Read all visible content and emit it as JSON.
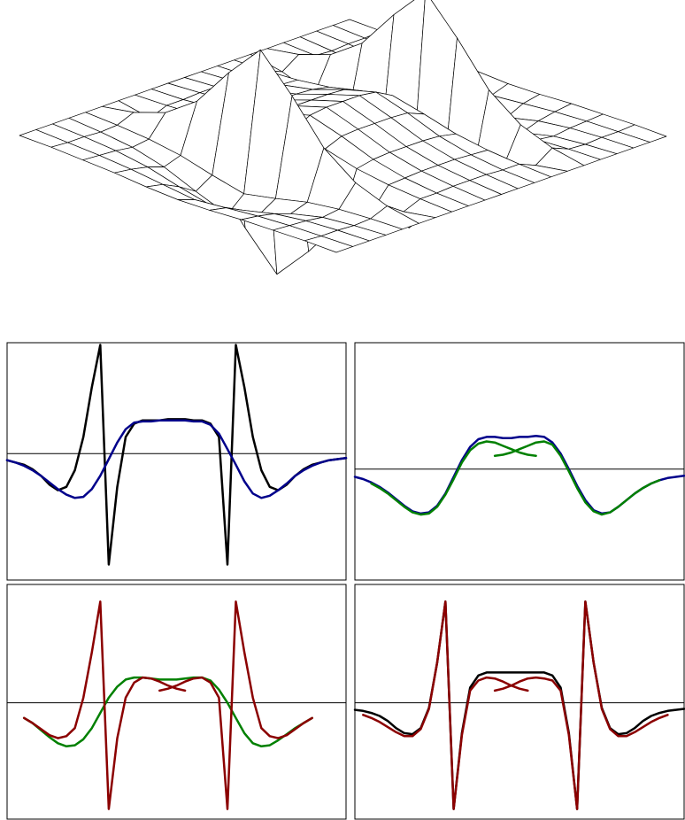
{
  "chart_data": [
    {
      "type": "surface",
      "z": [
        [
          0,
          0,
          0,
          0,
          0,
          0,
          0,
          0,
          0,
          0,
          0,
          0,
          0,
          0,
          0,
          0,
          0,
          0,
          0,
          0,
          0
        ],
        [
          0,
          -0.01,
          -0.01,
          -0.02,
          -0.01,
          0.05,
          -0.05,
          0.01,
          0.01,
          0.02,
          0.02,
          0.02,
          0.01,
          0.01,
          -0.05,
          0.05,
          -0.01,
          -0.02,
          -0.01,
          -0.01,
          0
        ],
        [
          -0.01,
          -0.02,
          -0.03,
          -0.05,
          -0.03,
          0.15,
          -0.15,
          0.03,
          0.04,
          0.05,
          0.05,
          0.05,
          0.04,
          0.03,
          -0.15,
          0.15,
          -0.03,
          -0.05,
          -0.03,
          -0.02,
          -0.01
        ],
        [
          -0.02,
          -0.04,
          -0.07,
          -0.12,
          -0.07,
          0.35,
          -0.35,
          0.07,
          0.1,
          0.11,
          0.11,
          0.11,
          0.1,
          0.07,
          -0.35,
          0.35,
          -0.07,
          -0.12,
          -0.07,
          -0.04,
          -0.02
        ],
        [
          -0.04,
          -0.07,
          -0.14,
          -0.23,
          -0.14,
          0.7,
          -0.7,
          0.14,
          0.2,
          0.21,
          0.21,
          0.21,
          0.2,
          0.14,
          -0.7,
          0.7,
          -0.14,
          -0.23,
          -0.14,
          -0.07,
          -0.04
        ],
        [
          -0.05,
          -0.1,
          -0.2,
          -0.33,
          -0.2,
          1.0,
          -1.0,
          0.2,
          0.28,
          0.3,
          0.3,
          0.3,
          0.28,
          0.2,
          -1.0,
          1.0,
          -0.2,
          -0.33,
          -0.2,
          -0.1,
          -0.05
        ],
        [
          -0.04,
          -0.07,
          -0.14,
          -0.23,
          -0.14,
          0.7,
          -0.7,
          0.14,
          0.2,
          0.21,
          0.21,
          0.21,
          0.2,
          0.14,
          -0.7,
          0.7,
          -0.14,
          -0.23,
          -0.14,
          -0.07,
          -0.04
        ],
        [
          -0.02,
          -0.04,
          -0.07,
          -0.12,
          -0.07,
          0.35,
          -0.35,
          0.07,
          0.1,
          0.11,
          0.11,
          0.11,
          0.1,
          0.07,
          -0.35,
          0.35,
          -0.07,
          -0.12,
          -0.07,
          -0.04,
          -0.02
        ],
        [
          -0.01,
          -0.02,
          -0.03,
          -0.05,
          -0.03,
          0.15,
          -0.15,
          0.03,
          0.04,
          0.05,
          0.05,
          0.05,
          0.04,
          0.03,
          -0.15,
          0.15,
          -0.03,
          -0.05,
          -0.03,
          -0.02,
          -0.01
        ],
        [
          0,
          -0.01,
          -0.01,
          -0.02,
          -0.01,
          0.05,
          -0.05,
          0.01,
          0.01,
          0.02,
          0.02,
          0.02,
          0.01,
          0.01,
          -0.05,
          0.05,
          -0.01,
          -0.02,
          -0.01,
          -0.01,
          0
        ],
        [
          0,
          0,
          0,
          0,
          0,
          0,
          0,
          0,
          0,
          0,
          0,
          0,
          0,
          0,
          0,
          0,
          0,
          0,
          0,
          0,
          0
        ]
      ]
    },
    {
      "type": "line",
      "xlim": [
        0,
        1
      ],
      "ylim": [
        -1.14,
        1.0
      ],
      "x": [
        0,
        0.025,
        0.05,
        0.075,
        0.1,
        0.125,
        0.15,
        0.175,
        0.2,
        0.225,
        0.25,
        0.275,
        0.3,
        0.325,
        0.35,
        0.375,
        0.4,
        0.425,
        0.45,
        0.475,
        0.5,
        0.525,
        0.55,
        0.575,
        0.6,
        0.625,
        0.65,
        0.675,
        0.7,
        0.725,
        0.75,
        0.775,
        0.8,
        0.825,
        0.85,
        0.875,
        0.9,
        0.925,
        0.95,
        0.975,
        1
      ],
      "series": [
        {
          "color": "#000000",
          "values": [
            -0.06,
            -0.08,
            -0.1,
            -0.14,
            -0.2,
            -0.28,
            -0.33,
            -0.3,
            -0.15,
            0.15,
            0.6,
            0.98,
            -1.0,
            -0.3,
            0.15,
            0.27,
            0.3,
            0.3,
            0.3,
            0.31,
            0.31,
            0.31,
            0.3,
            0.3,
            0.27,
            0.15,
            -1.0,
            0.98,
            0.6,
            0.15,
            -0.15,
            -0.3,
            -0.33,
            -0.28,
            -0.2,
            -0.14,
            -0.1,
            -0.08,
            -0.06,
            -0.05,
            -0.04
          ]
        },
        {
          "color": "#00008b",
          "values": [
            -0.06,
            -0.08,
            -0.11,
            -0.15,
            -0.2,
            -0.26,
            -0.32,
            -0.37,
            -0.4,
            -0.39,
            -0.32,
            -0.2,
            -0.05,
            0.1,
            0.22,
            0.28,
            0.29,
            0.29,
            0.3,
            0.3,
            0.3,
            0.3,
            0.29,
            0.29,
            0.26,
            0.18,
            0.04,
            -0.1,
            -0.25,
            -0.36,
            -0.4,
            -0.38,
            -0.33,
            -0.27,
            -0.2,
            -0.15,
            -0.11,
            -0.08,
            -0.06,
            -0.05,
            -0.04
          ]
        }
      ]
    },
    {
      "type": "line",
      "xlim": [
        0,
        1
      ],
      "ylim": [
        -1.0,
        1.14
      ],
      "x": [
        0,
        0.025,
        0.05,
        0.075,
        0.1,
        0.125,
        0.15,
        0.175,
        0.2,
        0.225,
        0.25,
        0.275,
        0.3,
        0.325,
        0.35,
        0.375,
        0.4,
        0.425,
        0.45,
        0.475,
        0.5,
        0.525,
        0.55,
        0.575,
        0.6,
        0.625,
        0.65,
        0.675,
        0.7,
        0.725,
        0.75,
        0.775,
        0.8,
        0.825,
        0.85,
        0.875,
        0.9,
        0.925,
        0.95,
        0.975,
        1
      ],
      "series": [
        {
          "color": "#00008b",
          "values": [
            -0.07,
            -0.09,
            -0.12,
            -0.16,
            -0.21,
            -0.27,
            -0.33,
            -0.38,
            -0.4,
            -0.39,
            -0.33,
            -0.22,
            -0.07,
            0.08,
            0.2,
            0.27,
            0.29,
            0.29,
            0.28,
            0.28,
            0.29,
            0.29,
            0.3,
            0.29,
            0.24,
            0.14,
            0.0,
            -0.15,
            -0.28,
            -0.37,
            -0.4,
            -0.39,
            -0.34,
            -0.28,
            -0.22,
            -0.17,
            -0.13,
            -0.1,
            -0.08,
            -0.07,
            -0.06
          ]
        },
        {
          "color": "#008000",
          "values": [
            null,
            null,
            -0.13,
            -0.17,
            -0.22,
            -0.28,
            -0.34,
            -0.39,
            -0.41,
            -0.4,
            -0.34,
            -0.23,
            -0.09,
            0.06,
            0.17,
            0.23,
            0.25,
            0.24,
            0.21,
            0.18,
            0.15,
            0.13,
            0.12,
            null,
            null,
            null,
            null,
            null,
            null,
            null,
            null,
            null,
            null,
            null,
            null,
            null,
            null,
            null,
            null,
            null,
            null
          ]
        },
        {
          "color": "#008000",
          "values": [
            null,
            null,
            null,
            null,
            null,
            null,
            null,
            null,
            null,
            null,
            null,
            null,
            null,
            null,
            null,
            null,
            null,
            0.12,
            0.13,
            0.15,
            0.18,
            0.21,
            0.24,
            0.25,
            0.22,
            0.12,
            -0.02,
            -0.17,
            -0.3,
            -0.38,
            -0.41,
            -0.39,
            -0.34,
            -0.28,
            -0.22,
            -0.17,
            -0.13,
            -0.1,
            null,
            null,
            null
          ]
        }
      ]
    },
    {
      "type": "line",
      "xlim": [
        0,
        1
      ],
      "ylim": [
        -1.15,
        1.17
      ],
      "x": [
        0,
        0.025,
        0.05,
        0.075,
        0.1,
        0.125,
        0.15,
        0.175,
        0.2,
        0.225,
        0.25,
        0.275,
        0.3,
        0.325,
        0.35,
        0.375,
        0.4,
        0.425,
        0.45,
        0.475,
        0.5,
        0.525,
        0.55,
        0.575,
        0.6,
        0.625,
        0.65,
        0.675,
        0.7,
        0.725,
        0.75,
        0.775,
        0.8,
        0.825,
        0.85,
        0.875,
        0.9,
        0.925,
        0.95,
        0.975,
        1
      ],
      "series": [
        {
          "color": "#008000",
          "values": [
            null,
            null,
            -0.15,
            -0.2,
            -0.27,
            -0.34,
            -0.4,
            -0.43,
            -0.42,
            -0.36,
            -0.25,
            -0.1,
            0.05,
            0.16,
            0.23,
            0.25,
            0.25,
            0.24,
            0.23,
            0.23,
            0.23,
            0.24,
            0.25,
            0.25,
            0.22,
            0.13,
            0.0,
            -0.15,
            -0.3,
            -0.4,
            -0.43,
            -0.42,
            -0.37,
            -0.31,
            -0.25,
            -0.2,
            -0.15,
            null,
            null,
            null,
            null
          ]
        },
        {
          "color": "#8b0000",
          "values": [
            null,
            null,
            -0.15,
            -0.2,
            -0.26,
            -0.32,
            -0.35,
            -0.33,
            -0.25,
            0.05,
            0.5,
            1.0,
            -1.05,
            -0.35,
            0.05,
            0.2,
            0.25,
            0.24,
            0.21,
            0.17,
            0.14,
            0.12,
            null,
            null,
            null,
            null,
            null,
            null,
            null,
            null,
            null,
            null,
            null,
            null,
            null,
            null,
            null,
            null,
            null,
            null,
            null
          ]
        },
        {
          "color": "#8b0000",
          "values": [
            null,
            null,
            null,
            null,
            null,
            null,
            null,
            null,
            null,
            null,
            null,
            null,
            null,
            null,
            null,
            null,
            null,
            null,
            0.12,
            0.14,
            0.17,
            0.21,
            0.24,
            0.25,
            0.2,
            0.05,
            -1.05,
            1.0,
            0.5,
            0.05,
            -0.25,
            -0.33,
            -0.35,
            -0.32,
            -0.26,
            -0.2,
            -0.15,
            null,
            null,
            null,
            null
          ]
        }
      ]
    },
    {
      "type": "line",
      "xlim": [
        0,
        1
      ],
      "ylim": [
        -1.15,
        1.17
      ],
      "x": [
        0,
        0.025,
        0.05,
        0.075,
        0.1,
        0.125,
        0.15,
        0.175,
        0.2,
        0.225,
        0.25,
        0.275,
        0.3,
        0.325,
        0.35,
        0.375,
        0.4,
        0.425,
        0.45,
        0.475,
        0.5,
        0.525,
        0.55,
        0.575,
        0.6,
        0.625,
        0.65,
        0.675,
        0.7,
        0.725,
        0.75,
        0.775,
        0.8,
        0.825,
        0.85,
        0.875,
        0.9,
        0.925,
        0.95,
        0.975,
        1
      ],
      "series": [
        {
          "color": "#000000",
          "values": [
            -0.07,
            -0.08,
            -0.1,
            -0.13,
            -0.18,
            -0.25,
            -0.3,
            -0.31,
            -0.25,
            -0.05,
            0.4,
            1.0,
            -1.05,
            -0.3,
            0.15,
            0.27,
            0.3,
            0.3,
            0.3,
            0.3,
            0.3,
            0.3,
            0.3,
            0.3,
            0.27,
            0.15,
            -0.3,
            -1.05,
            1.0,
            0.4,
            -0.05,
            -0.25,
            -0.31,
            -0.3,
            -0.25,
            -0.18,
            -0.13,
            -0.1,
            -0.08,
            -0.07,
            -0.06
          ]
        },
        {
          "color": "#8b0000",
          "values": [
            null,
            -0.12,
            -0.15,
            -0.19,
            -0.24,
            -0.29,
            -0.33,
            -0.33,
            -0.26,
            -0.06,
            0.4,
            1.0,
            -1.05,
            -0.32,
            0.12,
            0.22,
            0.25,
            0.24,
            0.21,
            0.17,
            0.14,
            0.12,
            null,
            null,
            null,
            null,
            null,
            null,
            null,
            null,
            null,
            null,
            null,
            null,
            null,
            null,
            null,
            null,
            null,
            null,
            null
          ]
        },
        {
          "color": "#8b0000",
          "values": [
            null,
            null,
            null,
            null,
            null,
            null,
            null,
            null,
            null,
            null,
            null,
            null,
            null,
            null,
            null,
            null,
            null,
            0.12,
            0.14,
            0.17,
            0.21,
            0.24,
            0.25,
            0.24,
            0.22,
            0.12,
            -0.32,
            -1.05,
            1.0,
            0.4,
            -0.06,
            -0.26,
            -0.33,
            -0.33,
            -0.29,
            -0.24,
            -0.19,
            -0.15,
            -0.12,
            null,
            null
          ]
        }
      ]
    }
  ]
}
